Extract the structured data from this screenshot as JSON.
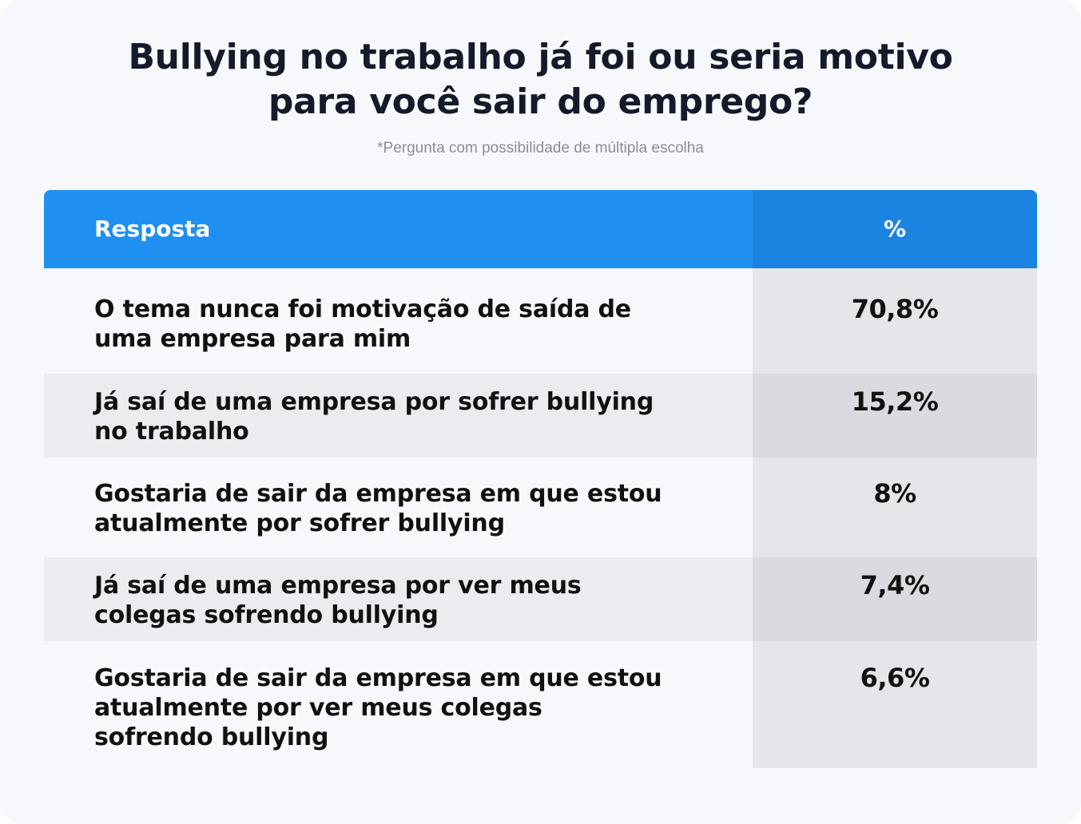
{
  "title_lines": [
    "Bullying no trabalho já foi ou seria motivo",
    "para você sair do emprego?"
  ],
  "subtitle": "*Pergunta com possibilidade de múltipla escolha",
  "colors": {
    "header": "#1f8ff0",
    "header_pct": "#1b84e0",
    "background": "#f7f8fb",
    "row_alt": "#eaecf0",
    "pct_col": "#e5e6ea",
    "pct_col_alt": "#dadbe0"
  },
  "chart_data": {
    "type": "table",
    "title": "Bullying no trabalho já foi ou seria motivo para você sair do emprego?",
    "subtitle": "*Pergunta com possibilidade de múltipla escolha",
    "columns": [
      "Resposta",
      "%"
    ],
    "rows": [
      {
        "resposta": "O tema nunca foi motivação de saída de uma empresa para mim",
        "lines": [
          "O tema nunca foi motivação de saída de",
          "uma empresa para mim"
        ],
        "percent": "70,8%",
        "value": 70.8
      },
      {
        "resposta": "Já saí de uma empresa por sofrer bullying no trabalho",
        "lines": [
          "Já saí de uma empresa por sofrer bullying",
          "no trabalho"
        ],
        "percent": "15,2%",
        "value": 15.2
      },
      {
        "resposta": "Gostaria de sair da empresa em que estou atualmente por sofrer bullying",
        "lines": [
          "Gostaria de sair da empresa em que estou",
          "atualmente por sofrer bullying"
        ],
        "percent": "8%",
        "value": 8
      },
      {
        "resposta": "Já saí de uma empresa por ver meus colegas sofrendo bullying",
        "lines": [
          "Já saí de uma empresa por ver meus",
          "colegas sofrendo bullying"
        ],
        "percent": "7,4%",
        "value": 7.4
      },
      {
        "resposta": "Gostaria de sair da empresa em que estou atualmente por ver meus colegas sofrendo bullying",
        "lines": [
          "Gostaria de sair da empresa em que estou",
          "atualmente por ver meus colegas",
          "sofrendo bullying"
        ],
        "percent": "6,6%",
        "value": 6.6
      }
    ]
  }
}
